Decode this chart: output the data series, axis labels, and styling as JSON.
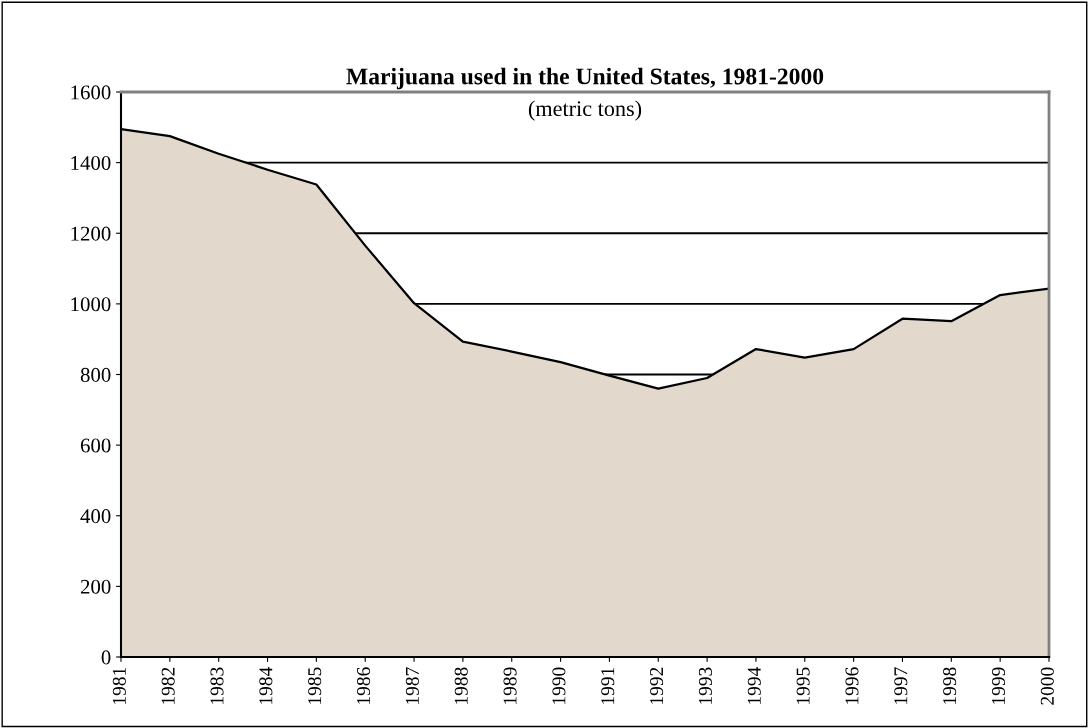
{
  "chart_data": {
    "type": "area",
    "title": "Marijuana used in the United States, 1981-2000",
    "subtitle": "(metric tons)",
    "categories": [
      "1981",
      "1982",
      "1983",
      "1984",
      "1985",
      "1986",
      "1987",
      "1988",
      "1989",
      "1990",
      "1991",
      "1992",
      "1993",
      "1994",
      "1995",
      "1996",
      "1997",
      "1998",
      "1999",
      "2000"
    ],
    "series": [
      {
        "color": "#e2d9cc",
        "values": [
          1495,
          1475,
          1425,
          1380,
          1338,
          1165,
          1002,
          893,
          865,
          835,
          797,
          760,
          790,
          872,
          848,
          872,
          958,
          951,
          1025,
          1043
        ]
      }
    ],
    "ylim": [
      0,
      1600
    ],
    "yticks": [
      0,
      200,
      400,
      600,
      800,
      1000,
      1200,
      1400,
      1600
    ],
    "grid": "y",
    "legend": false
  }
}
